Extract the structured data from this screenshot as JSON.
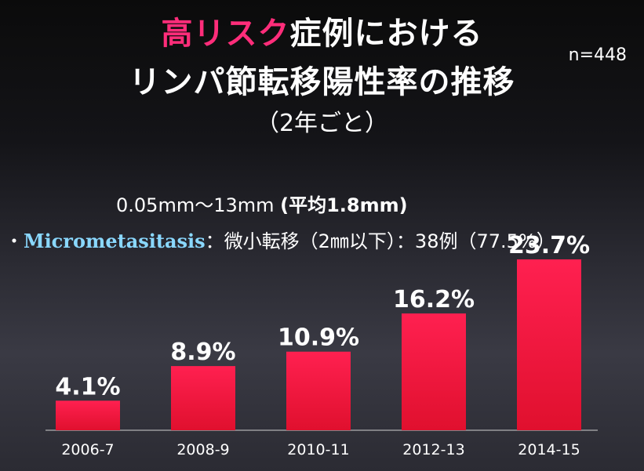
{
  "title": {
    "line1_highlight": "高リスク",
    "line1_rest": "症例における",
    "line2": "リンパ節転移陽性率の推移"
  },
  "subtitle": "（2年ごと）",
  "sample_size": "n=448",
  "notes": {
    "range_normal": "0.05mm～13mm ",
    "range_bold": "(平均1.8mm)",
    "bullet": "・",
    "micro_term": "Micrometasitasis",
    "micro_rest": "：微小転移（2㎜以下）：38例（77.5%）"
  },
  "colors": {
    "accent": "#ff2d7a",
    "bar_top": "#ff2050",
    "bar_bottom": "#e0102e",
    "micro_term": "#8ad8ff"
  },
  "chart_data": {
    "type": "bar",
    "categories": [
      "2006-7",
      "2008-9",
      "2010-11",
      "2012-13",
      "2014-15"
    ],
    "values": [
      4.1,
      8.9,
      10.9,
      16.2,
      23.7
    ],
    "data_labels": [
      "4.1%",
      "8.9%",
      "10.9%",
      "16.2%",
      "23.7%"
    ],
    "title": "",
    "xlabel": "",
    "ylabel": "",
    "ylim": [
      0,
      25
    ],
    "grid": false
  }
}
